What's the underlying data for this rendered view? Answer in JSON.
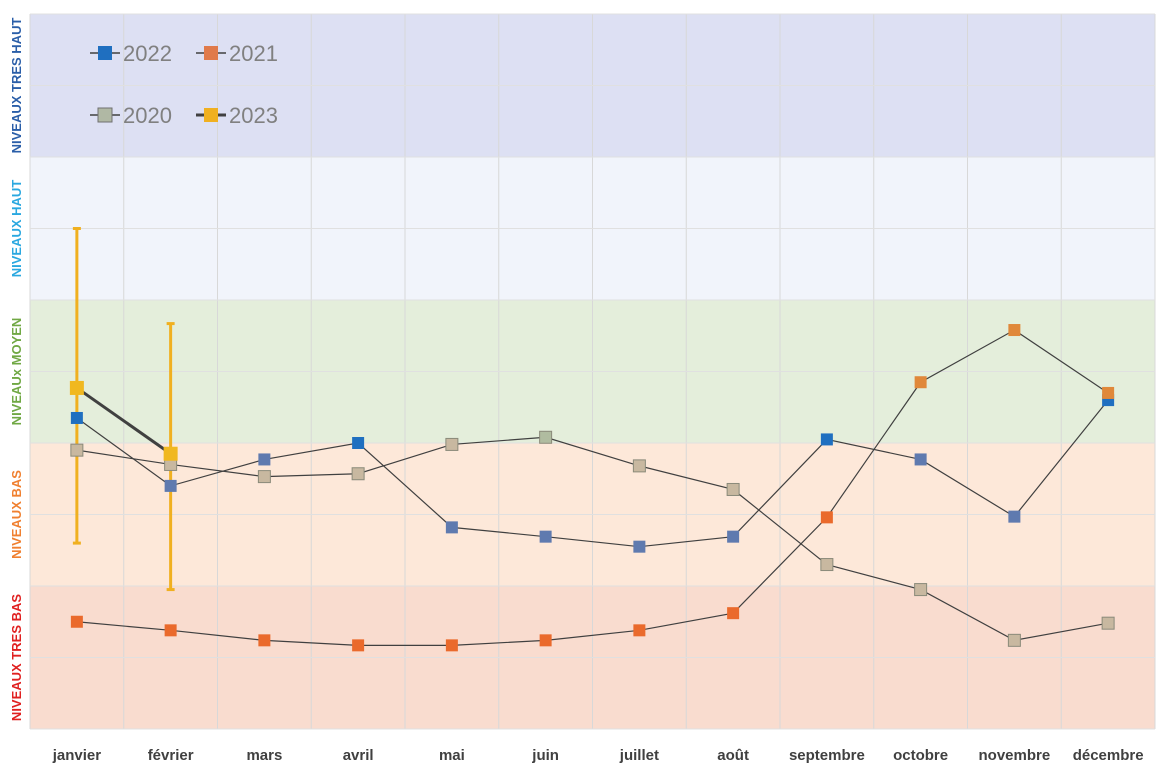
{
  "chart_data": {
    "type": "line",
    "categories": [
      "janvier",
      "février",
      "mars",
      "avril",
      "mai",
      "juin",
      "juillet",
      "août",
      "septembre",
      "octobre",
      "novembre",
      "décembre"
    ],
    "ylim": [
      0,
      10
    ],
    "bands": [
      {
        "label": "NIVEAUX TRES BAS",
        "from": 0,
        "to": 2,
        "color": "#f9dccf",
        "text_color": "#e02020"
      },
      {
        "label": "NIVEAUX BAS",
        "from": 2,
        "to": 4,
        "color": "#fde8d9",
        "text_color": "#f08030"
      },
      {
        "label": "NIVEAUx MOYEN",
        "from": 4,
        "to": 6,
        "color": "#e4eedb",
        "text_color": "#70a844"
      },
      {
        "label": "NIVEAUX HAUT",
        "from": 6,
        "to": 8,
        "color": "#f1f4fb",
        "text_color": "#2aa8e0"
      },
      {
        "label": "NIVEAUX TRES HAUT",
        "from": 8,
        "to": 10,
        "color": "#dde0f3",
        "text_color": "#2a5ea8"
      }
    ],
    "series": [
      {
        "name": "2022",
        "color": "#1f6fc0",
        "marker_color_low": "#5f7aaf",
        "values": [
          4.35,
          3.4,
          3.77,
          4.0,
          2.82,
          2.69,
          2.55,
          2.69,
          4.05,
          3.77,
          2.97,
          4.6
        ]
      },
      {
        "name": "2021",
        "color": "#e07040",
        "marker_color": "#ea6a2c",
        "values": [
          1.5,
          1.38,
          1.24,
          1.17,
          1.17,
          1.24,
          1.38,
          1.62,
          2.96,
          4.85,
          5.58,
          4.7
        ]
      },
      {
        "name": "2020",
        "color": "#b0b8a4",
        "marker_color_high": "#b0bca0",
        "marker_color_low": "#c8b8a0",
        "values": [
          3.9,
          3.7,
          3.53,
          3.57,
          3.98,
          4.08,
          3.68,
          3.35,
          2.3,
          1.95,
          1.24,
          1.48
        ]
      },
      {
        "name": "2023",
        "color": "#f0b020",
        "values": [
          4.77,
          3.85,
          null,
          null,
          null,
          null,
          null,
          null,
          null,
          null,
          null,
          null
        ],
        "error_bars": [
          [
            2.6,
            7.0
          ],
          [
            1.95,
            5.67
          ]
        ]
      }
    ],
    "grid": true,
    "legend_position": "top-left"
  }
}
